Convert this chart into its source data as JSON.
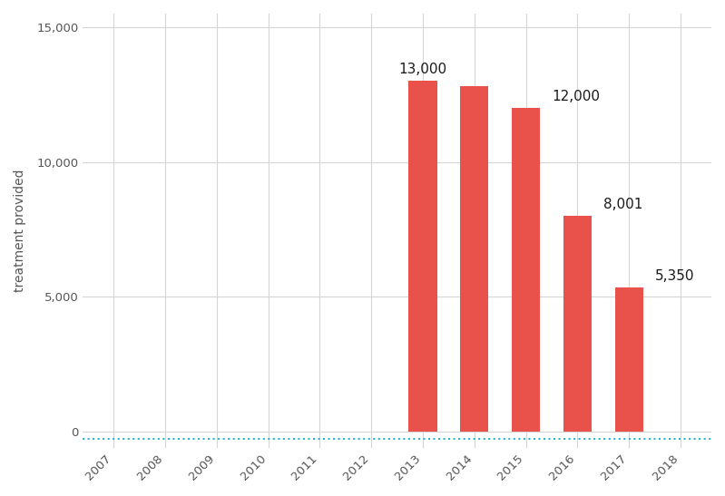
{
  "bar_years": [
    2013,
    2014,
    2015,
    2016,
    2017
  ],
  "bar_values": [
    13000,
    12800,
    12000,
    8001,
    5350
  ],
  "bar_labels": [
    "13,000",
    null,
    "12,000",
    "8,001",
    "5,350"
  ],
  "label_positions": [
    "above_center",
    null,
    "right",
    "right",
    "right"
  ],
  "bar_color": "#e8524a",
  "ylabel": "treatment provided",
  "ylim": [
    -600,
    15500
  ],
  "yticks": [
    0,
    5000,
    10000,
    15000
  ],
  "ytick_labels": [
    "0",
    "5,000",
    "10,000",
    "15,000"
  ],
  "xlim": [
    2006.4,
    2018.6
  ],
  "xticks": [
    2007,
    2008,
    2009,
    2010,
    2011,
    2012,
    2013,
    2014,
    2015,
    2016,
    2017,
    2018
  ],
  "grid_color": "#d5d5d5",
  "dashed_line_color": "#29b6d1",
  "dashed_line_y": -250,
  "background_color": "#ffffff",
  "label_fontsize": 11,
  "ylabel_fontsize": 10,
  "tick_fontsize": 9.5,
  "bar_width": 0.55
}
